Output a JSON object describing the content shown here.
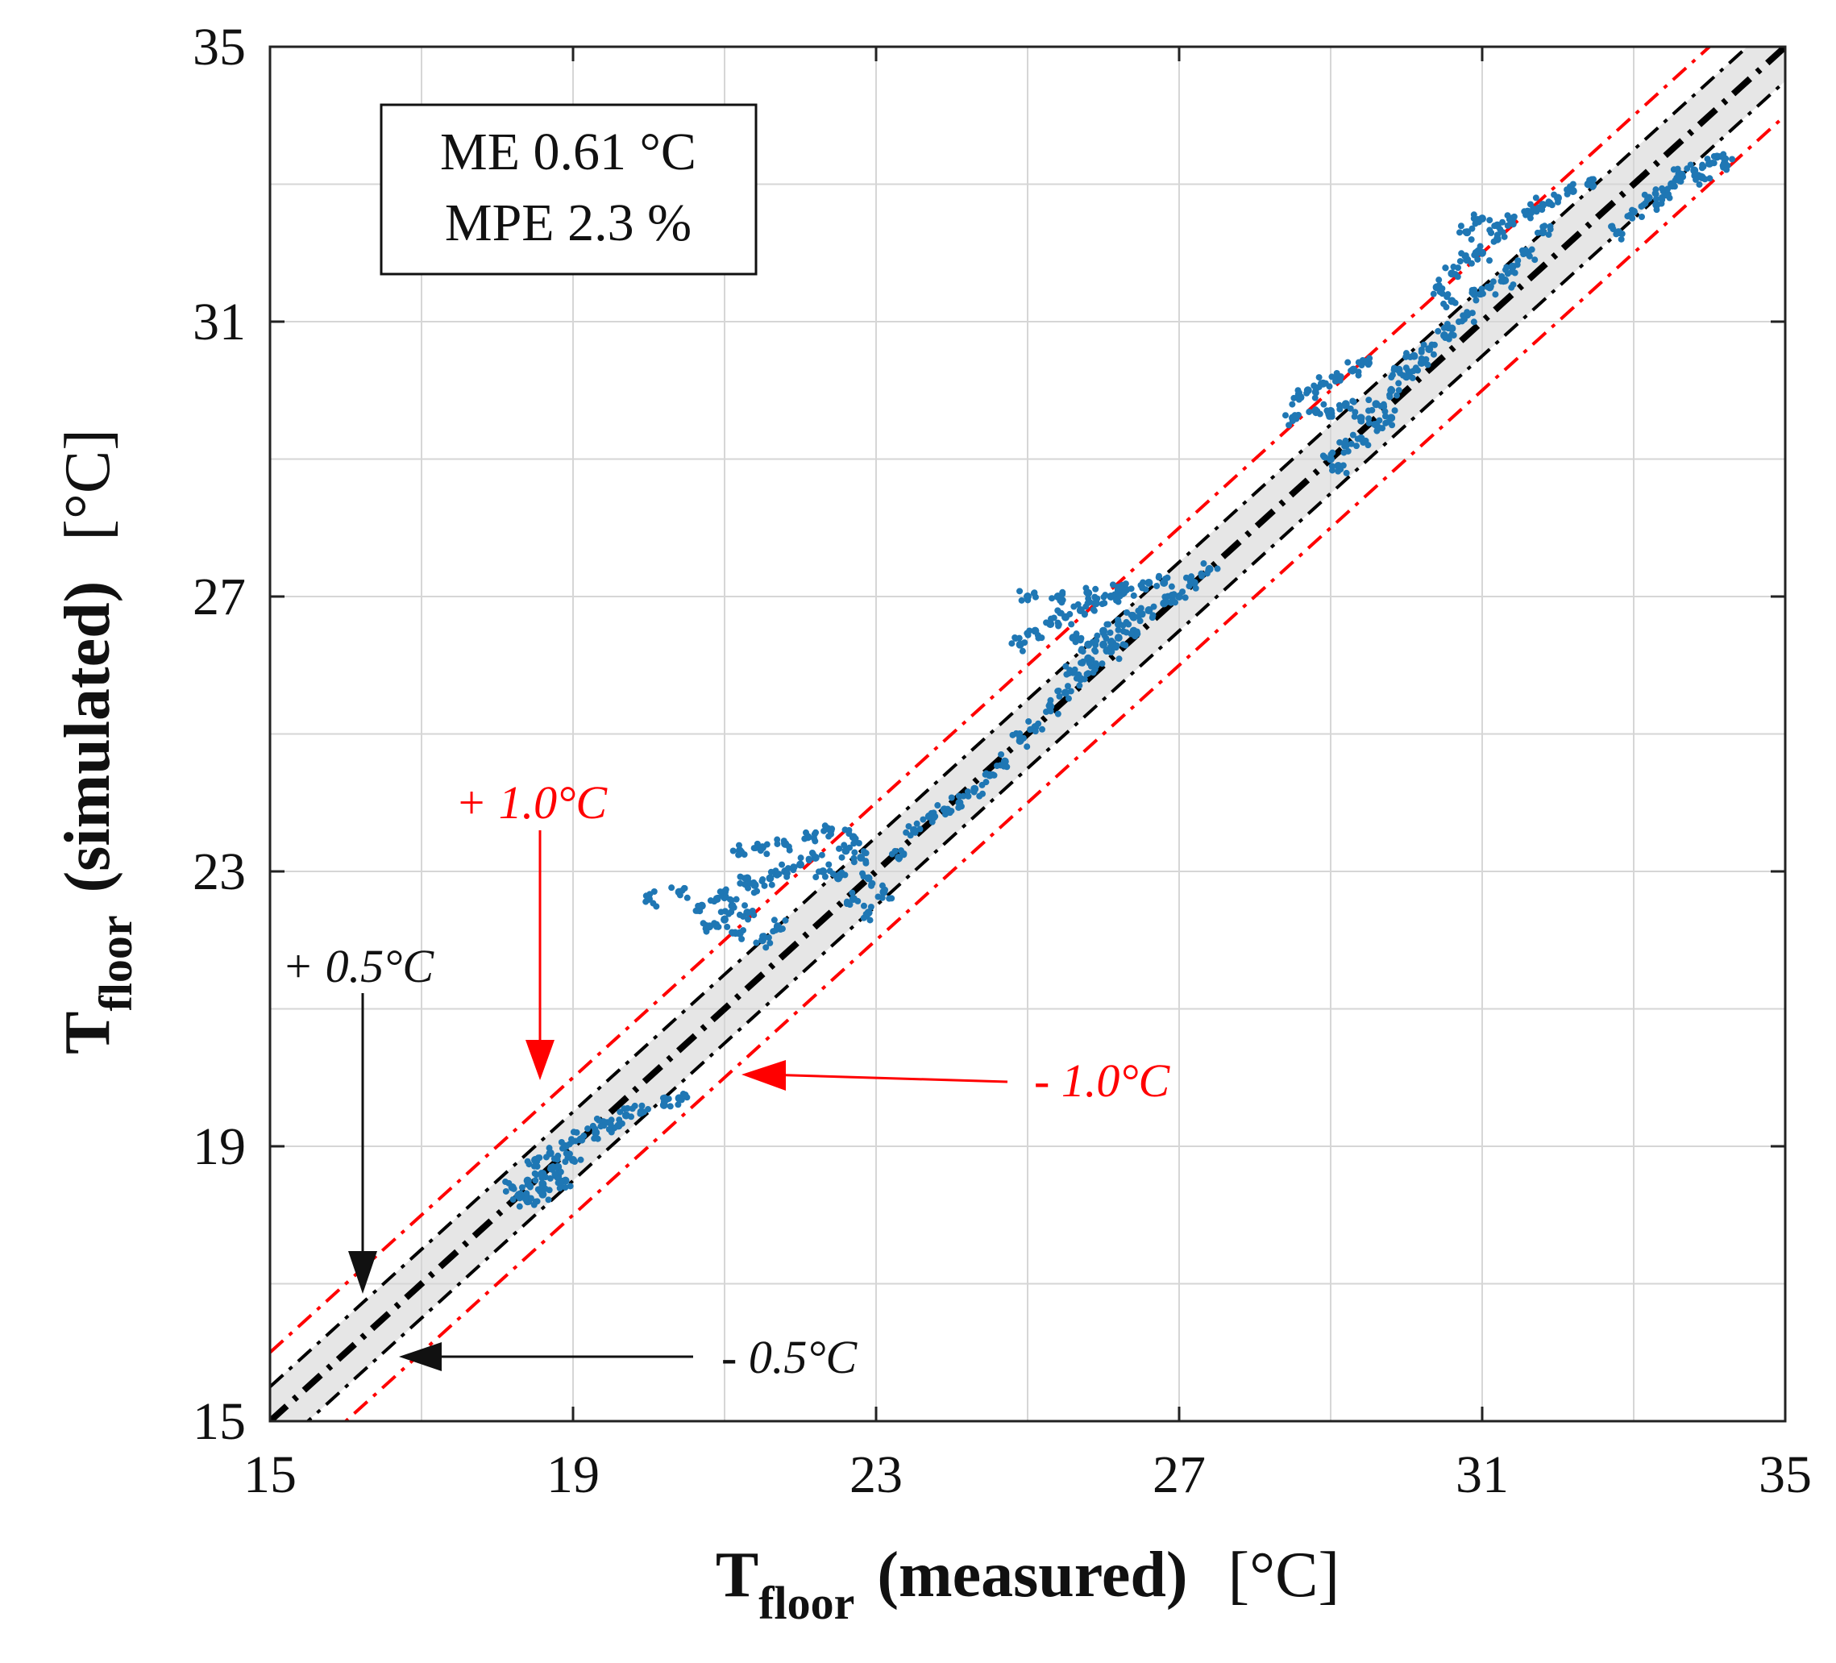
{
  "chart_data": {
    "type": "scatter",
    "xlabel": {
      "symbol": "T",
      "subscript": "floor",
      "qualifier": "(measured)",
      "unit": "[°C]"
    },
    "ylabel": {
      "symbol": "T",
      "subscript": "floor",
      "qualifier": "(simulated)",
      "unit": "[°C]"
    },
    "xlim": [
      15,
      35
    ],
    "ylim": [
      15,
      35
    ],
    "xticks": [
      15,
      19,
      23,
      27,
      31,
      35
    ],
    "yticks": [
      15,
      19,
      23,
      27,
      31,
      35
    ],
    "grid": true,
    "stats_box": {
      "line1": "ME 0.61 °C",
      "line2": "MPE 2.3 %"
    },
    "reference_lines": [
      {
        "name": "1:1",
        "offset": 0,
        "color": "#000000"
      },
      {
        "name": "+0.5",
        "offset": 0.5,
        "color": "#000000"
      },
      {
        "name": "-0.5",
        "offset": -0.5,
        "color": "#000000"
      },
      {
        "name": "+1.0",
        "offset": 1.0,
        "color": "#ff0000"
      },
      {
        "name": "-1.0",
        "offset": -1.0,
        "color": "#ff0000"
      }
    ],
    "band": {
      "offset": 0.5,
      "color": "#e6e6e6"
    },
    "annotations": [
      {
        "text": "+ 0.5°C",
        "color": "#000000"
      },
      {
        "text": "- 0.5°C",
        "color": "#000000"
      },
      {
        "text": "+ 1.0°C",
        "color": "#ff0000"
      },
      {
        "text": "- 1.0°C",
        "color": "#ff0000"
      }
    ],
    "series": [
      {
        "name": "simulated vs measured",
        "color": "#1f77b4",
        "points": [
          [
            18.2,
            18.4
          ],
          [
            18.4,
            18.5
          ],
          [
            18.6,
            18.6
          ],
          [
            18.8,
            18.6
          ],
          [
            18.5,
            18.8
          ],
          [
            18.7,
            18.9
          ],
          [
            18.9,
            19.0
          ],
          [
            19.1,
            19.1
          ],
          [
            18.4,
            18.2
          ],
          [
            18.6,
            18.3
          ],
          [
            18.9,
            18.5
          ],
          [
            19.3,
            19.2
          ],
          [
            19.6,
            19.3
          ],
          [
            19.9,
            19.5
          ],
          [
            20.2,
            19.6
          ],
          [
            20.4,
            19.7
          ],
          [
            18.8,
            18.7
          ],
          [
            19.0,
            18.8
          ],
          [
            18.3,
            18.3
          ],
          [
            18.6,
            18.45
          ],
          [
            19.4,
            19.35
          ],
          [
            19.7,
            19.45
          ],
          [
            20.8,
            22.2
          ],
          [
            20.9,
            22.6
          ],
          [
            21.1,
            22.5
          ],
          [
            21.3,
            22.4
          ],
          [
            21.0,
            22.7
          ],
          [
            21.4,
            22.8
          ],
          [
            21.6,
            22.9
          ],
          [
            21.8,
            23.0
          ],
          [
            22.0,
            23.1
          ],
          [
            22.2,
            23.2
          ],
          [
            21.2,
            23.3
          ],
          [
            21.5,
            23.35
          ],
          [
            21.8,
            23.4
          ],
          [
            22.1,
            23.5
          ],
          [
            22.4,
            23.6
          ],
          [
            22.7,
            23.5
          ],
          [
            21.0,
            22.3
          ],
          [
            21.2,
            22.1
          ],
          [
            21.5,
            22.0
          ],
          [
            21.7,
            22.2
          ],
          [
            20.0,
            22.6
          ],
          [
            20.4,
            22.7
          ],
          [
            20.7,
            22.5
          ],
          [
            21.3,
            22.9
          ],
          [
            22.3,
            23.0
          ],
          [
            22.5,
            22.9
          ],
          [
            22.6,
            23.3
          ],
          [
            22.8,
            23.2
          ],
          [
            22.9,
            22.9
          ],
          [
            22.7,
            22.6
          ],
          [
            22.9,
            22.4
          ],
          [
            23.1,
            22.7
          ],
          [
            23.3,
            23.2
          ],
          [
            23.5,
            23.6
          ],
          [
            23.7,
            23.8
          ],
          [
            23.9,
            23.9
          ],
          [
            24.1,
            24.0
          ],
          [
            24.3,
            24.2
          ],
          [
            24.5,
            24.4
          ],
          [
            24.7,
            24.6
          ],
          [
            24.9,
            24.9
          ],
          [
            25.1,
            25.1
          ],
          [
            25.3,
            25.4
          ],
          [
            25.5,
            25.6
          ],
          [
            25.7,
            25.8
          ],
          [
            25.9,
            26.0
          ],
          [
            26.1,
            26.2
          ],
          [
            24.9,
            26.3
          ],
          [
            25.1,
            26.5
          ],
          [
            25.3,
            26.6
          ],
          [
            25.5,
            26.7
          ],
          [
            25.7,
            26.8
          ],
          [
            25.9,
            26.9
          ],
          [
            26.1,
            27.0
          ],
          [
            26.3,
            27.1
          ],
          [
            25.0,
            27.0
          ],
          [
            25.4,
            27.0
          ],
          [
            25.8,
            27.05
          ],
          [
            26.2,
            27.1
          ],
          [
            26.6,
            27.2
          ],
          [
            26.8,
            27.2
          ],
          [
            25.6,
            26.4
          ],
          [
            25.8,
            26.3
          ],
          [
            26.0,
            26.5
          ],
          [
            26.2,
            26.6
          ],
          [
            26.4,
            26.7
          ],
          [
            26.6,
            26.8
          ],
          [
            26.8,
            26.9
          ],
          [
            27.0,
            27.0
          ],
          [
            27.2,
            27.2
          ],
          [
            27.4,
            27.4
          ],
          [
            25.6,
            25.9
          ],
          [
            25.8,
            26.1
          ],
          [
            26.0,
            26.3
          ],
          [
            26.2,
            26.4
          ],
          [
            26.4,
            26.5
          ],
          [
            28.5,
            29.6
          ],
          [
            28.6,
            29.9
          ],
          [
            28.7,
            30.0
          ],
          [
            28.9,
            30.1
          ],
          [
            29.1,
            30.2
          ],
          [
            29.3,
            30.3
          ],
          [
            29.5,
            30.4
          ],
          [
            29.2,
            29.8
          ],
          [
            29.0,
            29.7
          ],
          [
            28.8,
            29.7
          ],
          [
            29.4,
            29.6
          ],
          [
            29.6,
            29.5
          ],
          [
            29.8,
            29.6
          ],
          [
            29.0,
            29.0
          ],
          [
            29.2,
            29.2
          ],
          [
            29.1,
            28.9
          ],
          [
            29.4,
            29.3
          ],
          [
            29.6,
            29.8
          ],
          [
            29.8,
            30.0
          ],
          [
            30.0,
            30.2
          ],
          [
            30.2,
            30.4
          ],
          [
            30.3,
            30.6
          ],
          [
            30.5,
            30.8
          ],
          [
            30.6,
            30.9
          ],
          [
            30.8,
            31.1
          ],
          [
            30.9,
            31.4
          ],
          [
            31.1,
            31.5
          ],
          [
            31.3,
            31.6
          ],
          [
            30.6,
            31.7
          ],
          [
            30.8,
            31.9
          ],
          [
            31.0,
            32.0
          ],
          [
            31.2,
            32.2
          ],
          [
            30.4,
            31.5
          ],
          [
            30.6,
            31.3
          ],
          [
            31.4,
            31.8
          ],
          [
            31.6,
            32.0
          ],
          [
            31.8,
            32.3
          ],
          [
            31.2,
            32.4
          ],
          [
            31.4,
            32.5
          ],
          [
            31.6,
            32.6
          ],
          [
            31.8,
            32.7
          ],
          [
            32.0,
            32.8
          ],
          [
            32.2,
            32.9
          ],
          [
            32.4,
            33.0
          ],
          [
            30.8,
            32.3
          ],
          [
            31.0,
            32.5
          ],
          [
            29.9,
            30.3
          ],
          [
            30.1,
            30.5
          ],
          [
            32.8,
            32.3
          ],
          [
            33.0,
            32.6
          ],
          [
            33.2,
            32.8
          ],
          [
            33.4,
            32.9
          ],
          [
            33.5,
            33.0
          ],
          [
            33.6,
            33.15
          ],
          [
            33.8,
            33.2
          ],
          [
            34.0,
            33.3
          ],
          [
            34.1,
            33.4
          ],
          [
            34.2,
            33.3
          ],
          [
            33.9,
            33.1
          ],
          [
            33.3,
            32.7
          ]
        ]
      }
    ]
  }
}
